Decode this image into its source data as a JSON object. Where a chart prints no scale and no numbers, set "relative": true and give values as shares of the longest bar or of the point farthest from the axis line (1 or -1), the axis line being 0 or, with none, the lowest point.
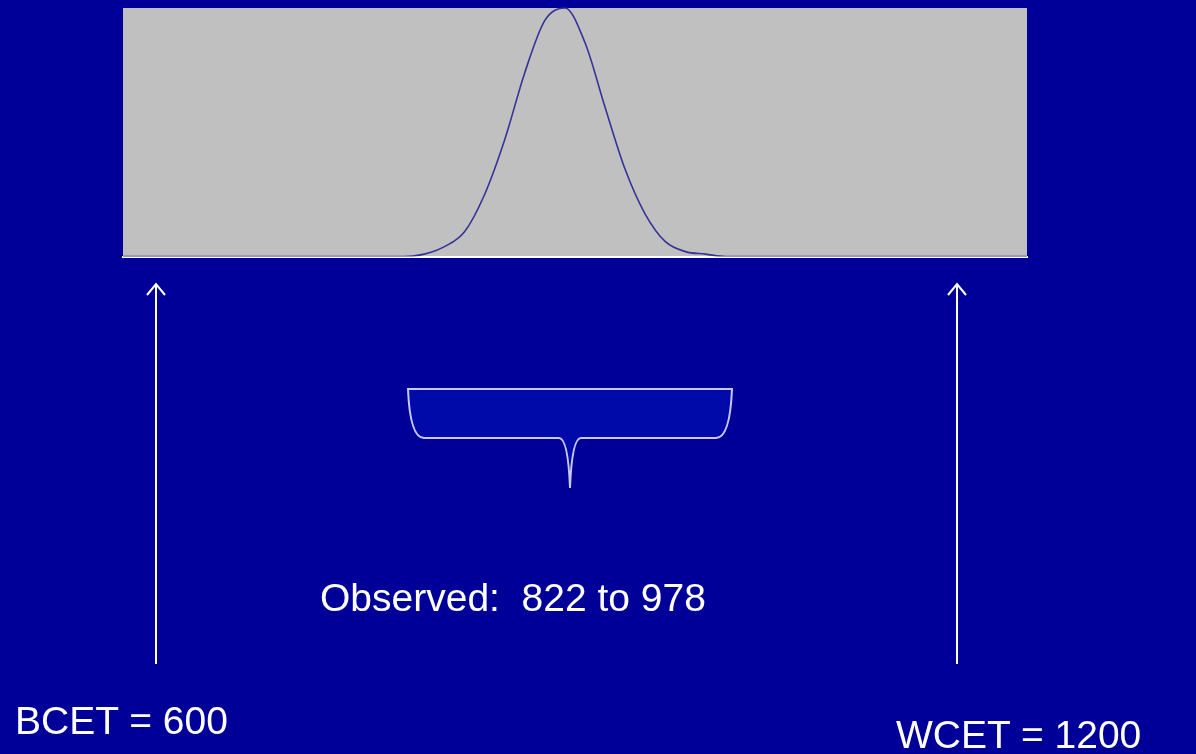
{
  "chart_data": {
    "type": "line",
    "relative": true,
    "categories": [
      null,
      null,
      null,
      null,
      null,
      null,
      null,
      null,
      null,
      null,
      null,
      null,
      null,
      null,
      null,
      null,
      null,
      null,
      null,
      null,
      null,
      null,
      null,
      null,
      null,
      null,
      null,
      null,
      null,
      null,
      null,
      null,
      null,
      null,
      null,
      null,
      null,
      null,
      null,
      null,
      null,
      null,
      null,
      null,
      null,
      null
    ],
    "series": [
      {
        "color": "#333399",
        "values": [
          0,
          0,
          0,
          0,
          0,
          0,
          0,
          0,
          0,
          0,
          0,
          0,
          0,
          0,
          0,
          0.01,
          0.04,
          0.1,
          0.25,
          0.47,
          0.74,
          0.95,
          1,
          0.86,
          0.6,
          0.35,
          0.17,
          0.06,
          0.02,
          0.01,
          0,
          0,
          0,
          0,
          0,
          0,
          0,
          0,
          0,
          0,
          0,
          0,
          0,
          0,
          0,
          0
        ]
      }
    ],
    "marker": "none",
    "grid": false,
    "legend": false,
    "annotations": [
      "Observed:  822 to 978",
      "BCET = 600",
      "WCET = 1200"
    ]
  }
}
